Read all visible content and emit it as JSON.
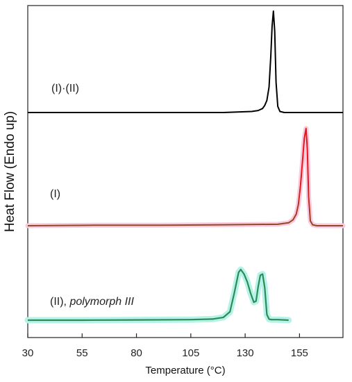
{
  "chart_data": {
    "type": "line",
    "xlabel": "Temperature (°C)",
    "ylabel": "Heat Flow (Endo up)",
    "xlim": [
      30,
      175
    ],
    "xticks": [
      30,
      55,
      80,
      105,
      130,
      155
    ],
    "colors": {
      "s1": "#000000",
      "s2": "#e8161b",
      "s3": "#2e8b57",
      "s2_end": "#8b4a2b",
      "s2_glow": "#f9c9dc",
      "s3_glow": "#b5f2e8"
    },
    "series": [
      {
        "name": "(I)·(II)",
        "peak_temperature": 143,
        "x": [
          30,
          60,
          90,
          120,
          133,
          136,
          138,
          139,
          140,
          141,
          141.8,
          142.4,
          143,
          143.6,
          144.2,
          145,
          146,
          148,
          155,
          175
        ],
        "y": [
          0.0,
          0.0,
          0.0,
          0.0,
          0.01,
          0.02,
          0.04,
          0.07,
          0.12,
          0.25,
          0.55,
          0.85,
          1.0,
          0.8,
          0.3,
          0.06,
          0.01,
          0.0,
          0.0,
          0.0
        ]
      },
      {
        "name": "(I)",
        "peak_temperature": 158,
        "x": [
          30,
          60,
          90,
          120,
          145,
          150,
          152,
          153.5,
          154.5,
          155.5,
          156.5,
          157.2,
          158,
          158.6,
          159.2,
          160,
          161,
          163,
          175
        ],
        "y": [
          0.0,
          0.005,
          0.005,
          0.01,
          0.015,
          0.03,
          0.06,
          0.12,
          0.22,
          0.42,
          0.7,
          0.9,
          1.0,
          0.78,
          0.3,
          0.05,
          0.01,
          0.0,
          0.0
        ]
      },
      {
        "name": "(II), polymorph III",
        "name_plain": "(II), ",
        "name_italic": "polymorph III",
        "peak_temperatures": [
          128,
          138
        ],
        "x": [
          30,
          55,
          80,
          105,
          115,
          120,
          123,
          125,
          127,
          128,
          129.5,
          131,
          132.5,
          134,
          135,
          136,
          137,
          138,
          139,
          140,
          141,
          142,
          145,
          150
        ],
        "y": [
          0.0,
          0.0,
          0.005,
          0.01,
          0.02,
          0.05,
          0.15,
          0.48,
          0.85,
          0.9,
          0.82,
          0.68,
          0.48,
          0.32,
          0.34,
          0.6,
          0.8,
          0.82,
          0.58,
          0.1,
          0.02,
          0.01,
          0.01,
          0.0
        ]
      }
    ]
  }
}
